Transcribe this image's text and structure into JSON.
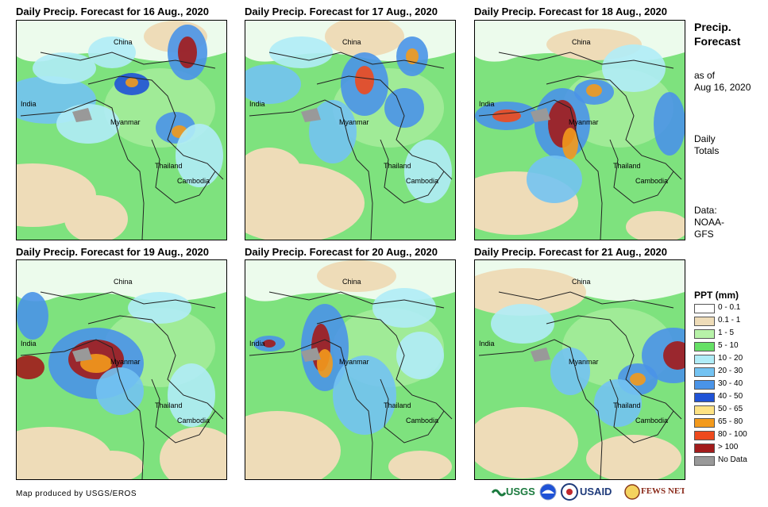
{
  "panels": [
    {
      "title": "Daily Precip. Forecast for 16 Aug., 2020"
    },
    {
      "title": "Daily Precip. Forecast for 17 Aug., 2020"
    },
    {
      "title": "Daily Precip. Forecast for 18 Aug., 2020"
    },
    {
      "title": "Daily Precip. Forecast for 19 Aug., 2020"
    },
    {
      "title": "Daily Precip. Forecast for 20 Aug., 2020"
    },
    {
      "title": "Daily Precip. Forecast for 21 Aug., 2020"
    }
  ],
  "places": {
    "china": "China",
    "india": "India",
    "myanmar": "Myanmar",
    "thailand": "Thailand",
    "cambodia": "Cambodia"
  },
  "side": {
    "title_line1": "Precip.",
    "title_line2": "Forecast",
    "asof_line1": "as of",
    "asof_line2": "Aug 16, 2020",
    "totals_line1": "Daily",
    "totals_line2": "Totals",
    "data_line1": "Data:",
    "data_line2": "NOAA-",
    "data_line3": "GFS"
  },
  "legend": {
    "title": "PPT (mm)",
    "items": [
      {
        "label": "0 - 0.1",
        "color": "#ffffff"
      },
      {
        "label": "0.1 - 1",
        "color": "#eedcb8"
      },
      {
        "label": "1 - 5",
        "color": "#b7f2a8"
      },
      {
        "label": "5 - 10",
        "color": "#66e066"
      },
      {
        "label": "10 - 20",
        "color": "#b0ecf7"
      },
      {
        "label": "20 - 30",
        "color": "#73c3f2"
      },
      {
        "label": "30 - 40",
        "color": "#4a94e8"
      },
      {
        "label": "40 - 50",
        "color": "#1f52d6"
      },
      {
        "label": "50 - 65",
        "color": "#fde283"
      },
      {
        "label": "65 - 80",
        "color": "#f39a1c"
      },
      {
        "label": "80 - 100",
        "color": "#ee4a1e"
      },
      {
        "label": "> 100",
        "color": "#a21b1b"
      },
      {
        "label": "No Data",
        "color": "#999999"
      }
    ]
  },
  "credit": "Map produced by USGS/EROS",
  "logos": {
    "usgs": "USGS",
    "usaid": "USAID",
    "fewsnet": "FEWS NET"
  }
}
